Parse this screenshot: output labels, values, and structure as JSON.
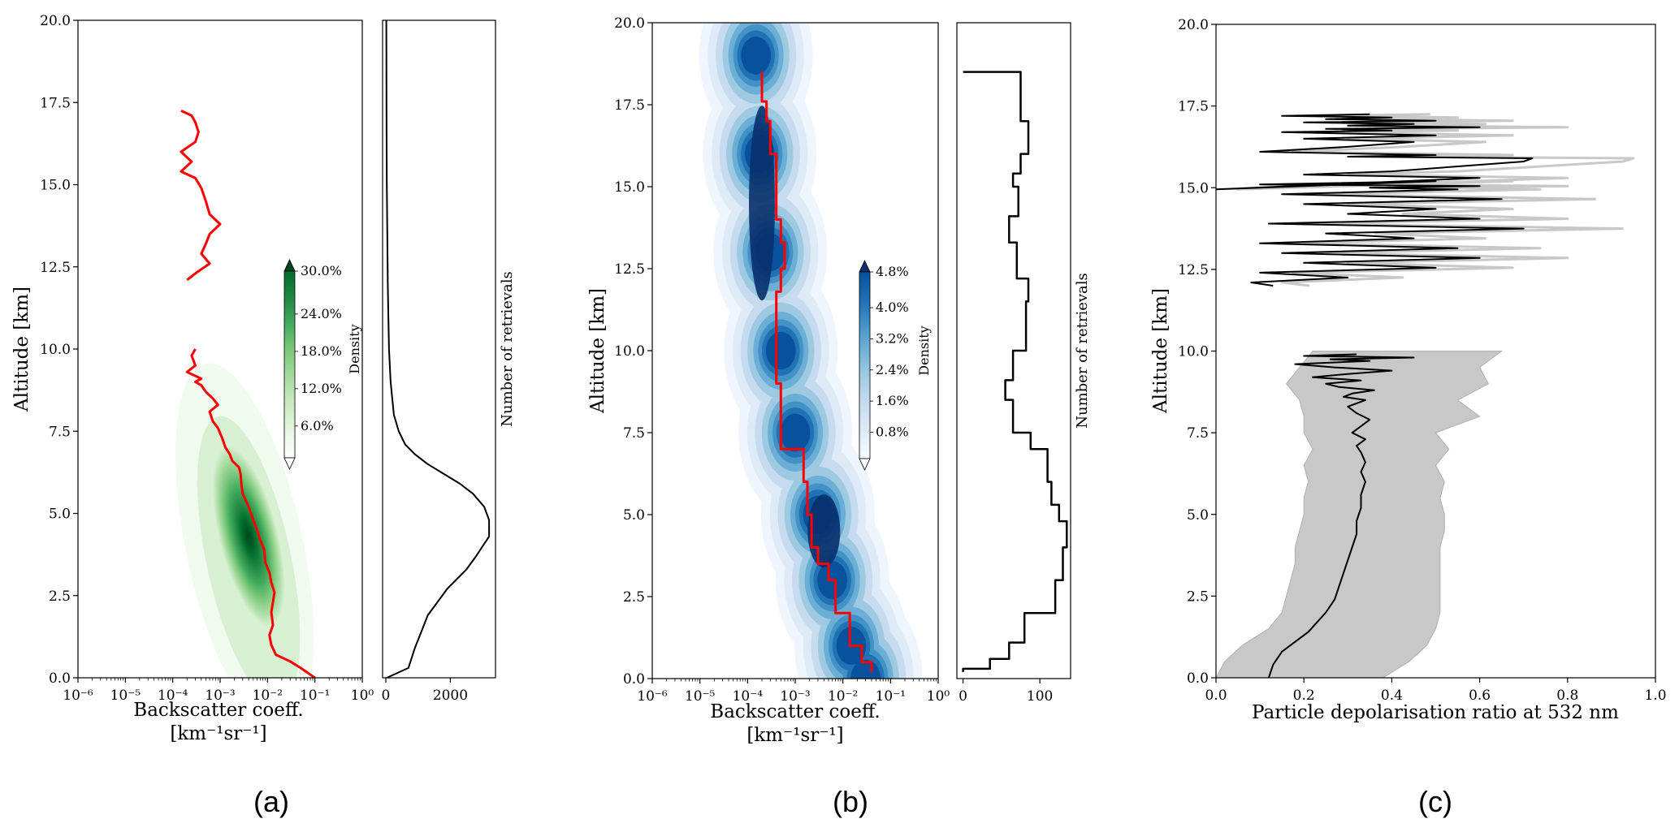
{
  "panel_labels": [
    "(a)",
    "(b)",
    "(c)"
  ],
  "chart_data": [
    {
      "id": "a-main",
      "type": "heatmap",
      "title": "",
      "xlabel_line1": "Backscatter coeff.",
      "xlabel_line2": "[km⁻¹sr⁻¹]",
      "ylabel": "Altitude [km]",
      "xscale": "log",
      "xlim": [
        1e-06,
        1
      ],
      "ylim": [
        0,
        20
      ],
      "x_tick_labels": [
        "10⁻⁶",
        "10⁻⁵",
        "10⁻⁴",
        "10⁻³",
        "10⁻²",
        "10⁻¹",
        "10⁰"
      ],
      "y_tick_labels": [
        "0.0",
        "2.5",
        "5.0",
        "7.5",
        "10.0",
        "12.5",
        "15.0",
        "17.5",
        "20.0"
      ],
      "colormap": "greens",
      "density_peak": {
        "x": 0.004,
        "y": 4.3
      },
      "colorbar": {
        "label": "Density",
        "tick_labels": [
          "6.0%",
          "12.0%",
          "18.0%",
          "24.0%",
          "30.0%"
        ],
        "colors": [
          "#ffffff",
          "#e5f5e0",
          "#c7e9c0",
          "#a1d99b",
          "#74c476",
          "#41ab5d",
          "#238b45",
          "#006d2c",
          "#00441b"
        ],
        "extend": "both"
      },
      "median_profile": {
        "color": "#ff0000",
        "segments": [
          [
            [
              0.1,
              0.0
            ],
            [
              0.05,
              0.3
            ],
            [
              0.03,
              0.5
            ],
            [
              0.015,
              0.7
            ],
            [
              0.012,
              1.0
            ],
            [
              0.011,
              1.3
            ],
            [
              0.013,
              1.6
            ],
            [
              0.012,
              2.0
            ],
            [
              0.013,
              2.3
            ],
            [
              0.014,
              2.6
            ],
            [
              0.012,
              2.9
            ],
            [
              0.011,
              3.2
            ],
            [
              0.009,
              3.5
            ],
            [
              0.0085,
              3.9
            ],
            [
              0.007,
              4.2
            ],
            [
              0.006,
              4.5
            ],
            [
              0.005,
              4.8
            ],
            [
              0.004,
              5.2
            ],
            [
              0.003,
              5.6
            ],
            [
              0.0028,
              5.9
            ],
            [
              0.0027,
              6.2
            ],
            [
              0.0025,
              6.4
            ],
            [
              0.0018,
              6.6
            ],
            [
              0.0016,
              6.8
            ],
            [
              0.0013,
              7.0
            ],
            [
              0.0011,
              7.3
            ],
            [
              0.0009,
              7.6
            ],
            [
              0.0007,
              7.8
            ],
            [
              0.0006,
              8.1
            ],
            [
              0.0009,
              8.3
            ],
            [
              0.0007,
              8.5
            ],
            [
              0.0005,
              8.7
            ],
            [
              0.0004,
              8.9
            ],
            [
              0.0003,
              9.0
            ],
            [
              0.0004,
              9.1
            ],
            [
              0.0002,
              9.3
            ],
            [
              0.0003,
              9.5
            ],
            [
              0.00025,
              9.8
            ],
            [
              0.0003,
              10.0
            ]
          ],
          [
            [
              0.0002,
              12.1
            ],
            [
              0.0003,
              12.3
            ],
            [
              0.0006,
              12.6
            ],
            [
              0.0004,
              12.9
            ],
            [
              0.0005,
              13.2
            ],
            [
              0.0006,
              13.5
            ],
            [
              0.001,
              13.8
            ],
            [
              0.0006,
              14.1
            ],
            [
              0.0005,
              14.5
            ],
            [
              0.0004,
              14.9
            ],
            [
              0.0003,
              15.2
            ],
            [
              0.00015,
              15.4
            ],
            [
              0.00025,
              15.7
            ],
            [
              0.00015,
              16.0
            ],
            [
              0.0003,
              16.3
            ],
            [
              0.00035,
              16.6
            ],
            [
              0.0003,
              16.9
            ],
            [
              0.00025,
              17.1
            ],
            [
              0.00015,
              17.25
            ]
          ]
        ]
      }
    },
    {
      "id": "a-side",
      "type": "line",
      "title": "",
      "ylabel": "Number of retrievals",
      "xlim": [
        -100,
        3400
      ],
      "ylim": [
        0,
        20
      ],
      "x_tick_labels": [
        "0",
        "2000"
      ],
      "x_ticks": [
        0,
        2000
      ],
      "series": [
        {
          "color": "#000000",
          "x": [
            30,
            700,
            900,
            1100,
            1300,
            1600,
            1900,
            2200,
            2500,
            2800,
            3000,
            3200,
            3200,
            3050,
            2700,
            2300,
            1800,
            1300,
            900,
            600,
            400,
            250,
            150,
            100,
            80,
            60,
            50,
            40,
            30,
            25,
            20,
            18,
            15
          ],
          "y": [
            0.0,
            0.3,
            0.9,
            1.4,
            1.9,
            2.3,
            2.7,
            3.0,
            3.3,
            3.7,
            4.0,
            4.3,
            4.8,
            5.2,
            5.6,
            5.9,
            6.2,
            6.5,
            6.8,
            7.1,
            7.5,
            8.0,
            9.0,
            10.0,
            11.0,
            12.0,
            13.0,
            14.0,
            15.0,
            16.0,
            17.5,
            19.0,
            20.0
          ]
        }
      ]
    },
    {
      "id": "b-main",
      "type": "heatmap",
      "title": "",
      "xlabel_line1": "Backscatter coeff.",
      "xlabel_line2": "[km⁻¹sr⁻¹]",
      "ylabel": "Altitude [km]",
      "xscale": "log",
      "xlim": [
        1e-06,
        1
      ],
      "ylim": [
        0,
        20
      ],
      "x_tick_labels": [
        "10⁻⁶",
        "10⁻⁵",
        "10⁻⁴",
        "10⁻³",
        "10⁻²",
        "10⁻¹",
        "10⁰"
      ],
      "y_tick_labels": [
        "0.0",
        "2.5",
        "5.0",
        "7.5",
        "10.0",
        "12.5",
        "15.0",
        "17.5",
        "20.0"
      ],
      "colormap": "blues",
      "colorbar": {
        "label": "Density",
        "tick_labels": [
          "0.8%",
          "1.6%",
          "2.4%",
          "3.2%",
          "4.0%",
          "4.8%"
        ],
        "colors": [
          "#ffffff",
          "#deebf7",
          "#c6dbef",
          "#9ecae1",
          "#6baed6",
          "#4292c6",
          "#2171b5",
          "#08519c",
          "#08306b"
        ],
        "extend": "both"
      },
      "median_profile": {
        "color": "#ff0000",
        "x": [
          0.04,
          0.04,
          0.025,
          0.025,
          0.014,
          0.014,
          0.007,
          0.007,
          0.005,
          0.005,
          0.003,
          0.003,
          0.0022,
          0.0022,
          0.0018,
          0.0018,
          0.0015,
          0.0015,
          0.0005,
          0.0005,
          0.0004,
          0.0004,
          0.0004,
          0.0004,
          0.0005,
          0.0005,
          0.0006,
          0.0006,
          0.0005,
          0.0005,
          0.0004,
          0.0004,
          0.0004,
          0.0004,
          0.0003,
          0.0003,
          0.00025,
          0.00025,
          0.0002,
          0.0002
        ],
        "y": [
          0.2,
          0.5,
          0.5,
          1.0,
          1.0,
          2.0,
          2.0,
          3.0,
          3.0,
          3.5,
          3.5,
          4.0,
          4.0,
          5.0,
          5.0,
          6.0,
          6.0,
          7.0,
          7.0,
          9.0,
          9.0,
          10.0,
          10.0,
          11.8,
          11.8,
          12.5,
          12.5,
          13.3,
          13.3,
          14.0,
          14.0,
          15.0,
          15.0,
          16.0,
          16.0,
          17.0,
          17.0,
          17.6,
          17.6,
          18.5
        ]
      }
    },
    {
      "id": "b-side",
      "type": "line",
      "title": "",
      "ylabel": "Number of retrievals",
      "xlim": [
        -8,
        140
      ],
      "ylim": [
        0,
        20
      ],
      "x_tick_labels": [
        "0",
        "100"
      ],
      "x_ticks": [
        0,
        100
      ],
      "series": [
        {
          "color": "#000000",
          "x": [
            0,
            0,
            35,
            35,
            60,
            60,
            80,
            80,
            120,
            120,
            130,
            130,
            135,
            135,
            125,
            125,
            115,
            115,
            110,
            110,
            88,
            88,
            65,
            65,
            55,
            55,
            65,
            65,
            82,
            82,
            85,
            85,
            70,
            70,
            60,
            60,
            72,
            72,
            65,
            65,
            75,
            75,
            85,
            85,
            75,
            75,
            65,
            65,
            0
          ],
          "y": [
            0.2,
            0.3,
            0.3,
            0.6,
            0.6,
            1.1,
            1.1,
            2.0,
            2.0,
            3.0,
            3.0,
            4.0,
            4.0,
            4.8,
            4.8,
            5.3,
            5.3,
            6.0,
            6.0,
            7.0,
            7.0,
            7.5,
            7.5,
            8.5,
            8.5,
            9.1,
            9.1,
            10.0,
            10.0,
            11.5,
            11.5,
            12.2,
            12.2,
            13.3,
            13.3,
            14.1,
            14.1,
            15.0,
            15.0,
            15.4,
            15.4,
            16.0,
            16.0,
            17.0,
            17.0,
            18.5,
            18.5,
            18.5,
            18.5
          ]
        }
      ]
    },
    {
      "id": "c-main",
      "type": "line",
      "title": "",
      "xlabel": "Particle depolarisation ratio at 532 nm",
      "ylabel": "Altitude [km]",
      "xlim": [
        0,
        1
      ],
      "ylim": [
        0,
        20
      ],
      "x_tick_labels": [
        "0.0",
        "0.2",
        "0.4",
        "0.6",
        "0.8",
        "1.0"
      ],
      "y_tick_labels": [
        "0.0",
        "2.5",
        "5.0",
        "7.5",
        "10.0",
        "12.5",
        "15.0",
        "17.5",
        "20.0"
      ],
      "spread_band": {
        "color": "#c8c8c8",
        "y": [
          0.0,
          0.5,
          1.0,
          1.5,
          2.0,
          2.5,
          3.0,
          3.5,
          4.0,
          4.5,
          5.0,
          5.5,
          6.0,
          6.5,
          7.0,
          7.5,
          8.0,
          8.5,
          9.0,
          9.5,
          10.0
        ],
        "lower": [
          0.0,
          0.02,
          0.06,
          0.12,
          0.15,
          0.16,
          0.17,
          0.18,
          0.18,
          0.19,
          0.2,
          0.2,
          0.21,
          0.2,
          0.22,
          0.2,
          0.2,
          0.19,
          0.16,
          0.19,
          0.22
        ],
        "upper": [
          0.38,
          0.44,
          0.48,
          0.5,
          0.51,
          0.51,
          0.51,
          0.51,
          0.51,
          0.52,
          0.52,
          0.51,
          0.52,
          0.5,
          0.53,
          0.5,
          0.6,
          0.55,
          0.62,
          0.6,
          0.65
        ]
      },
      "series": [
        {
          "name_hidden": true,
          "color": "#000000",
          "x": [
            0.12,
            0.13,
            0.15,
            0.18,
            0.21,
            0.23,
            0.25,
            0.27,
            0.28,
            0.29,
            0.3,
            0.31,
            0.32,
            0.32,
            0.33,
            0.33,
            0.34,
            0.33,
            0.34,
            0.33,
            0.32,
            0.34,
            0.31,
            0.33,
            0.35,
            0.32,
            0.3,
            0.34,
            0.29,
            0.31,
            0.36,
            0.28,
            0.25,
            0.33,
            0.22,
            0.3,
            0.4,
            0.27,
            0.18,
            0.35,
            0.26,
            0.45,
            0.2,
            0.32
          ],
          "y": [
            0.0,
            0.4,
            0.8,
            1.1,
            1.4,
            1.7,
            2.0,
            2.4,
            2.8,
            3.2,
            3.6,
            4.0,
            4.4,
            4.8,
            5.2,
            5.6,
            6.0,
            6.3,
            6.6,
            6.9,
            7.1,
            7.3,
            7.5,
            7.7,
            7.9,
            8.1,
            8.3,
            8.5,
            8.6,
            8.7,
            8.8,
            8.9,
            9.0,
            9.1,
            9.2,
            9.3,
            9.4,
            9.5,
            9.6,
            9.7,
            9.75,
            9.8,
            9.85,
            9.9
          ]
        },
        {
          "name_hidden": true,
          "color": "#000000",
          "x": [
            0.13,
            0.08,
            0.3,
            0.1,
            0.5,
            0.2,
            0.6,
            0.15,
            0.55,
            0.1,
            0.45,
            0.25,
            0.7,
            0.12,
            0.6,
            0.3,
            0.5,
            0.2,
            0.65,
            0.15,
            0.55,
            0.35,
            0.6,
            0.1,
            0.5,
            0.0,
            0.6,
            0.2,
            0.4,
            0.7,
            0.72,
            0.3,
            0.5,
            0.1,
            0.3,
            0.45,
            0.2,
            0.5,
            0.15,
            0.4,
            0.25,
            0.6,
            0.3,
            0.45,
            0.2,
            0.5,
            0.25,
            0.4,
            0.15,
            0.35
          ],
          "y": [
            12.0,
            12.1,
            12.25,
            12.4,
            12.55,
            12.7,
            12.85,
            13.0,
            13.15,
            13.3,
            13.45,
            13.6,
            13.75,
            13.9,
            14.05,
            14.2,
            14.35,
            14.5,
            14.65,
            14.8,
            14.95,
            15.0,
            15.05,
            15.1,
            15.2,
            14.95,
            15.3,
            15.4,
            15.5,
            15.8,
            15.9,
            15.95,
            16.0,
            16.1,
            16.25,
            16.4,
            16.5,
            16.6,
            16.7,
            16.75,
            16.8,
            16.85,
            16.9,
            16.95,
            17.0,
            17.05,
            17.1,
            17.15,
            17.2,
            17.25
          ]
        }
      ]
    }
  ]
}
